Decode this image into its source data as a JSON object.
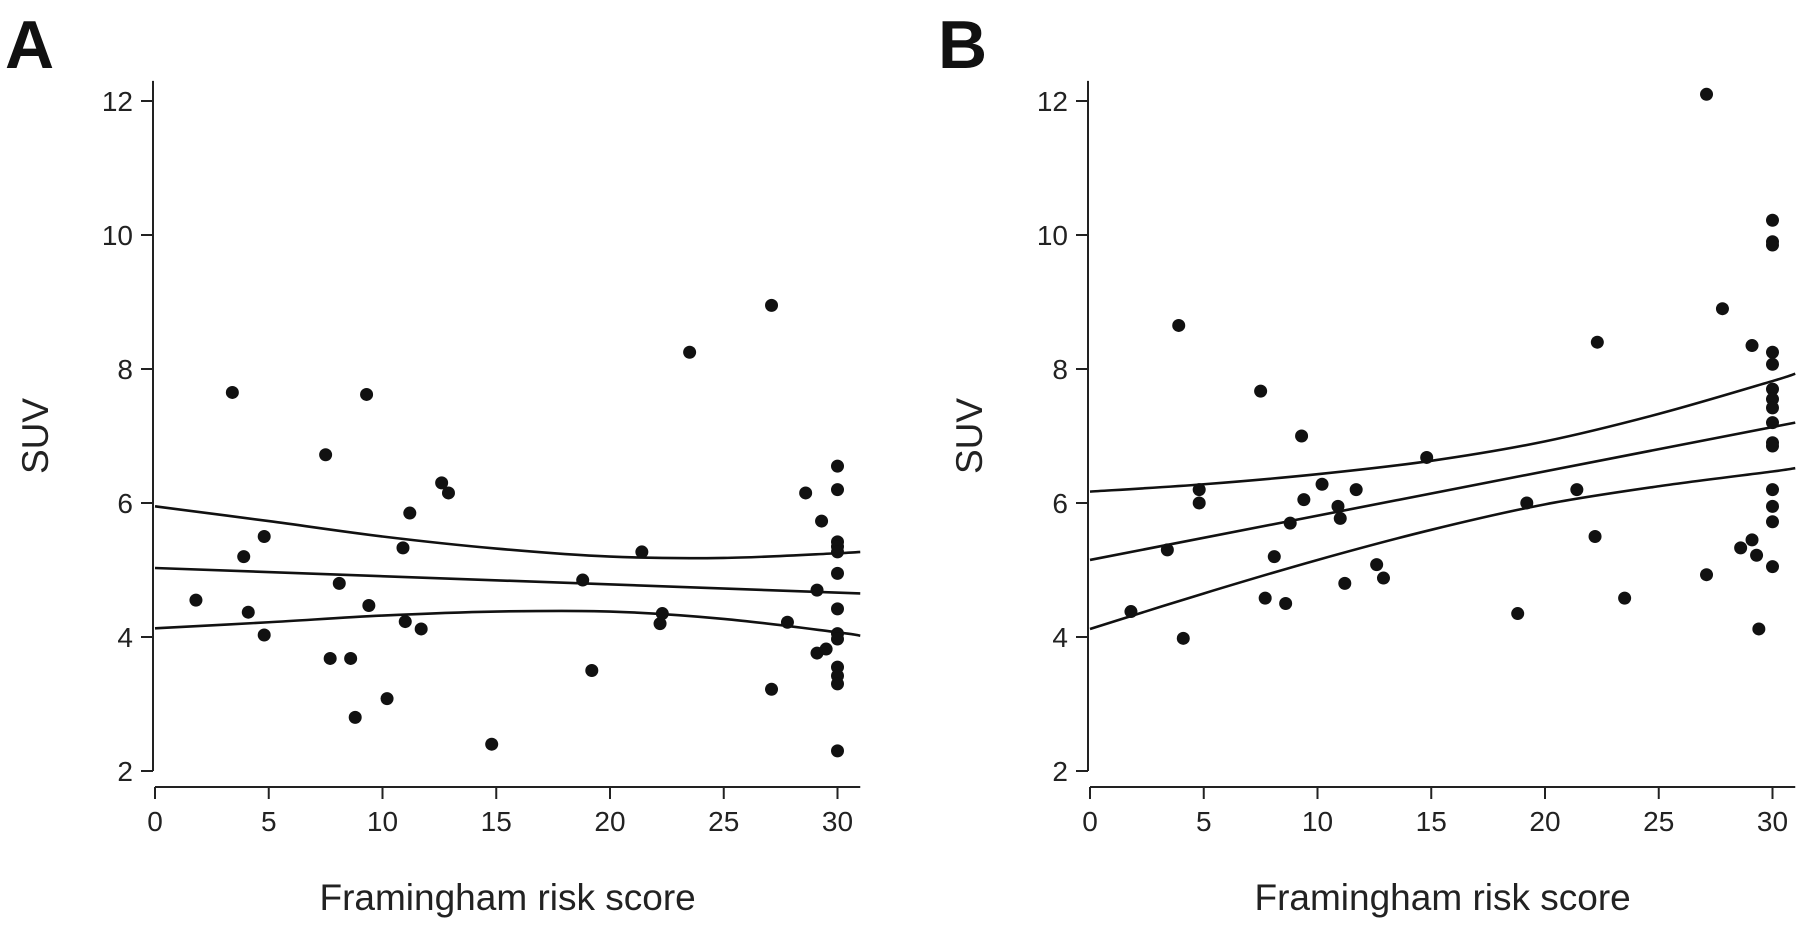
{
  "chart_data": [
    {
      "type": "scatter",
      "panel_label": "A",
      "xlabel": "Framingham risk score",
      "ylabel": "SUV",
      "xlim": [
        0,
        31
      ],
      "ylim": [
        2,
        12.5
      ],
      "xticks": [
        0,
        5,
        10,
        15,
        20,
        25,
        30
      ],
      "yticks": [
        2,
        4,
        6,
        8,
        10,
        12
      ],
      "grid": false,
      "points": [
        [
          1.8,
          4.55
        ],
        [
          3.4,
          7.65
        ],
        [
          3.9,
          5.2
        ],
        [
          4.1,
          4.37
        ],
        [
          4.8,
          5.5
        ],
        [
          4.8,
          4.03
        ],
        [
          7.5,
          6.72
        ],
        [
          7.7,
          3.68
        ],
        [
          8.1,
          4.8
        ],
        [
          8.6,
          3.68
        ],
        [
          8.8,
          2.8
        ],
        [
          9.3,
          7.62
        ],
        [
          9.4,
          4.47
        ],
        [
          10.2,
          3.08
        ],
        [
          10.9,
          5.33
        ],
        [
          11.0,
          4.23
        ],
        [
          11.2,
          5.85
        ],
        [
          11.7,
          4.12
        ],
        [
          12.6,
          6.3
        ],
        [
          12.9,
          6.15
        ],
        [
          14.8,
          2.4
        ],
        [
          18.8,
          4.85
        ],
        [
          19.2,
          3.5
        ],
        [
          21.4,
          5.27
        ],
        [
          22.2,
          4.2
        ],
        [
          22.3,
          4.35
        ],
        [
          23.5,
          8.25
        ],
        [
          27.1,
          8.95
        ],
        [
          27.1,
          3.22
        ],
        [
          27.8,
          4.22
        ],
        [
          28.6,
          6.15
        ],
        [
          29.1,
          3.76
        ],
        [
          29.1,
          4.7
        ],
        [
          29.3,
          5.73
        ],
        [
          29.5,
          3.82
        ],
        [
          30,
          6.55
        ],
        [
          30,
          6.2
        ],
        [
          30,
          5.42
        ],
        [
          30,
          5.35
        ],
        [
          30,
          5.27
        ],
        [
          30,
          4.95
        ],
        [
          30,
          4.42
        ],
        [
          30,
          4.05
        ],
        [
          30,
          3.97
        ],
        [
          30,
          3.55
        ],
        [
          30,
          3.42
        ],
        [
          30,
          3.3
        ],
        [
          30,
          2.3
        ]
      ],
      "fit_lines": [
        {
          "role": "upper",
          "points": [
            [
              0,
              5.95
            ],
            [
              5,
              5.73
            ],
            [
              10,
              5.5
            ],
            [
              15,
              5.32
            ],
            [
              20,
              5.2
            ],
            [
              25,
              5.18
            ],
            [
              30,
              5.25
            ],
            [
              31,
              5.27
            ]
          ]
        },
        {
          "role": "fit",
          "points": [
            [
              0,
              5.03
            ],
            [
              31,
              4.65
            ]
          ]
        },
        {
          "role": "lower",
          "points": [
            [
              0,
              4.13
            ],
            [
              5,
              4.22
            ],
            [
              10,
              4.32
            ],
            [
              15,
              4.38
            ],
            [
              20,
              4.38
            ],
            [
              25,
              4.27
            ],
            [
              30,
              4.07
            ],
            [
              31,
              4.02
            ]
          ]
        }
      ]
    },
    {
      "type": "scatter",
      "panel_label": "B",
      "xlabel": "Framingham risk score",
      "ylabel": "SUV",
      "xlim": [
        0,
        31
      ],
      "ylim": [
        2,
        12.5
      ],
      "xticks": [
        0,
        5,
        10,
        15,
        20,
        25,
        30
      ],
      "yticks": [
        2,
        4,
        6,
        8,
        10,
        12
      ],
      "grid": false,
      "points": [
        [
          1.8,
          4.38
        ],
        [
          3.4,
          5.3
        ],
        [
          3.9,
          8.65
        ],
        [
          4.1,
          3.98
        ],
        [
          4.8,
          6.2
        ],
        [
          4.8,
          6.0
        ],
        [
          7.5,
          7.67
        ],
        [
          7.7,
          4.58
        ],
        [
          8.1,
          5.2
        ],
        [
          8.6,
          4.5
        ],
        [
          8.8,
          5.7
        ],
        [
          9.3,
          7.0
        ],
        [
          9.4,
          6.05
        ],
        [
          10.2,
          6.28
        ],
        [
          10.9,
          5.95
        ],
        [
          11.0,
          5.77
        ],
        [
          11.2,
          4.8
        ],
        [
          11.7,
          6.2
        ],
        [
          12.6,
          5.08
        ],
        [
          12.9,
          4.88
        ],
        [
          14.8,
          6.68
        ],
        [
          18.8,
          4.35
        ],
        [
          19.2,
          6.0
        ],
        [
          21.4,
          6.2
        ],
        [
          22.2,
          5.5
        ],
        [
          22.3,
          8.4
        ],
        [
          23.5,
          4.58
        ],
        [
          27.1,
          12.1
        ],
        [
          27.1,
          4.93
        ],
        [
          27.8,
          8.9
        ],
        [
          28.6,
          5.33
        ],
        [
          29.1,
          8.35
        ],
        [
          29.1,
          5.45
        ],
        [
          29.3,
          5.22
        ],
        [
          29.4,
          4.12
        ],
        [
          30,
          10.22
        ],
        [
          30,
          9.9
        ],
        [
          30,
          9.85
        ],
        [
          30,
          8.25
        ],
        [
          30,
          8.07
        ],
        [
          30,
          7.7
        ],
        [
          30,
          7.55
        ],
        [
          30,
          7.42
        ],
        [
          30,
          7.2
        ],
        [
          30,
          6.9
        ],
        [
          30,
          6.85
        ],
        [
          30,
          6.2
        ],
        [
          30,
          5.95
        ],
        [
          30,
          5.72
        ],
        [
          30,
          5.05
        ]
      ],
      "fit_lines": [
        {
          "role": "upper",
          "points": [
            [
              0,
              6.17
            ],
            [
              5,
              6.28
            ],
            [
              10,
              6.43
            ],
            [
              15,
              6.63
            ],
            [
              20,
              6.92
            ],
            [
              25,
              7.33
            ],
            [
              30,
              7.82
            ],
            [
              31,
              7.93
            ]
          ]
        },
        {
          "role": "fit",
          "points": [
            [
              0,
              5.15
            ],
            [
              31,
              7.2
            ]
          ]
        },
        {
          "role": "lower",
          "points": [
            [
              0,
              4.12
            ],
            [
              5,
              4.65
            ],
            [
              10,
              5.15
            ],
            [
              15,
              5.6
            ],
            [
              20,
              5.98
            ],
            [
              25,
              6.25
            ],
            [
              30,
              6.47
            ],
            [
              31,
              6.52
            ]
          ]
        }
      ]
    }
  ]
}
